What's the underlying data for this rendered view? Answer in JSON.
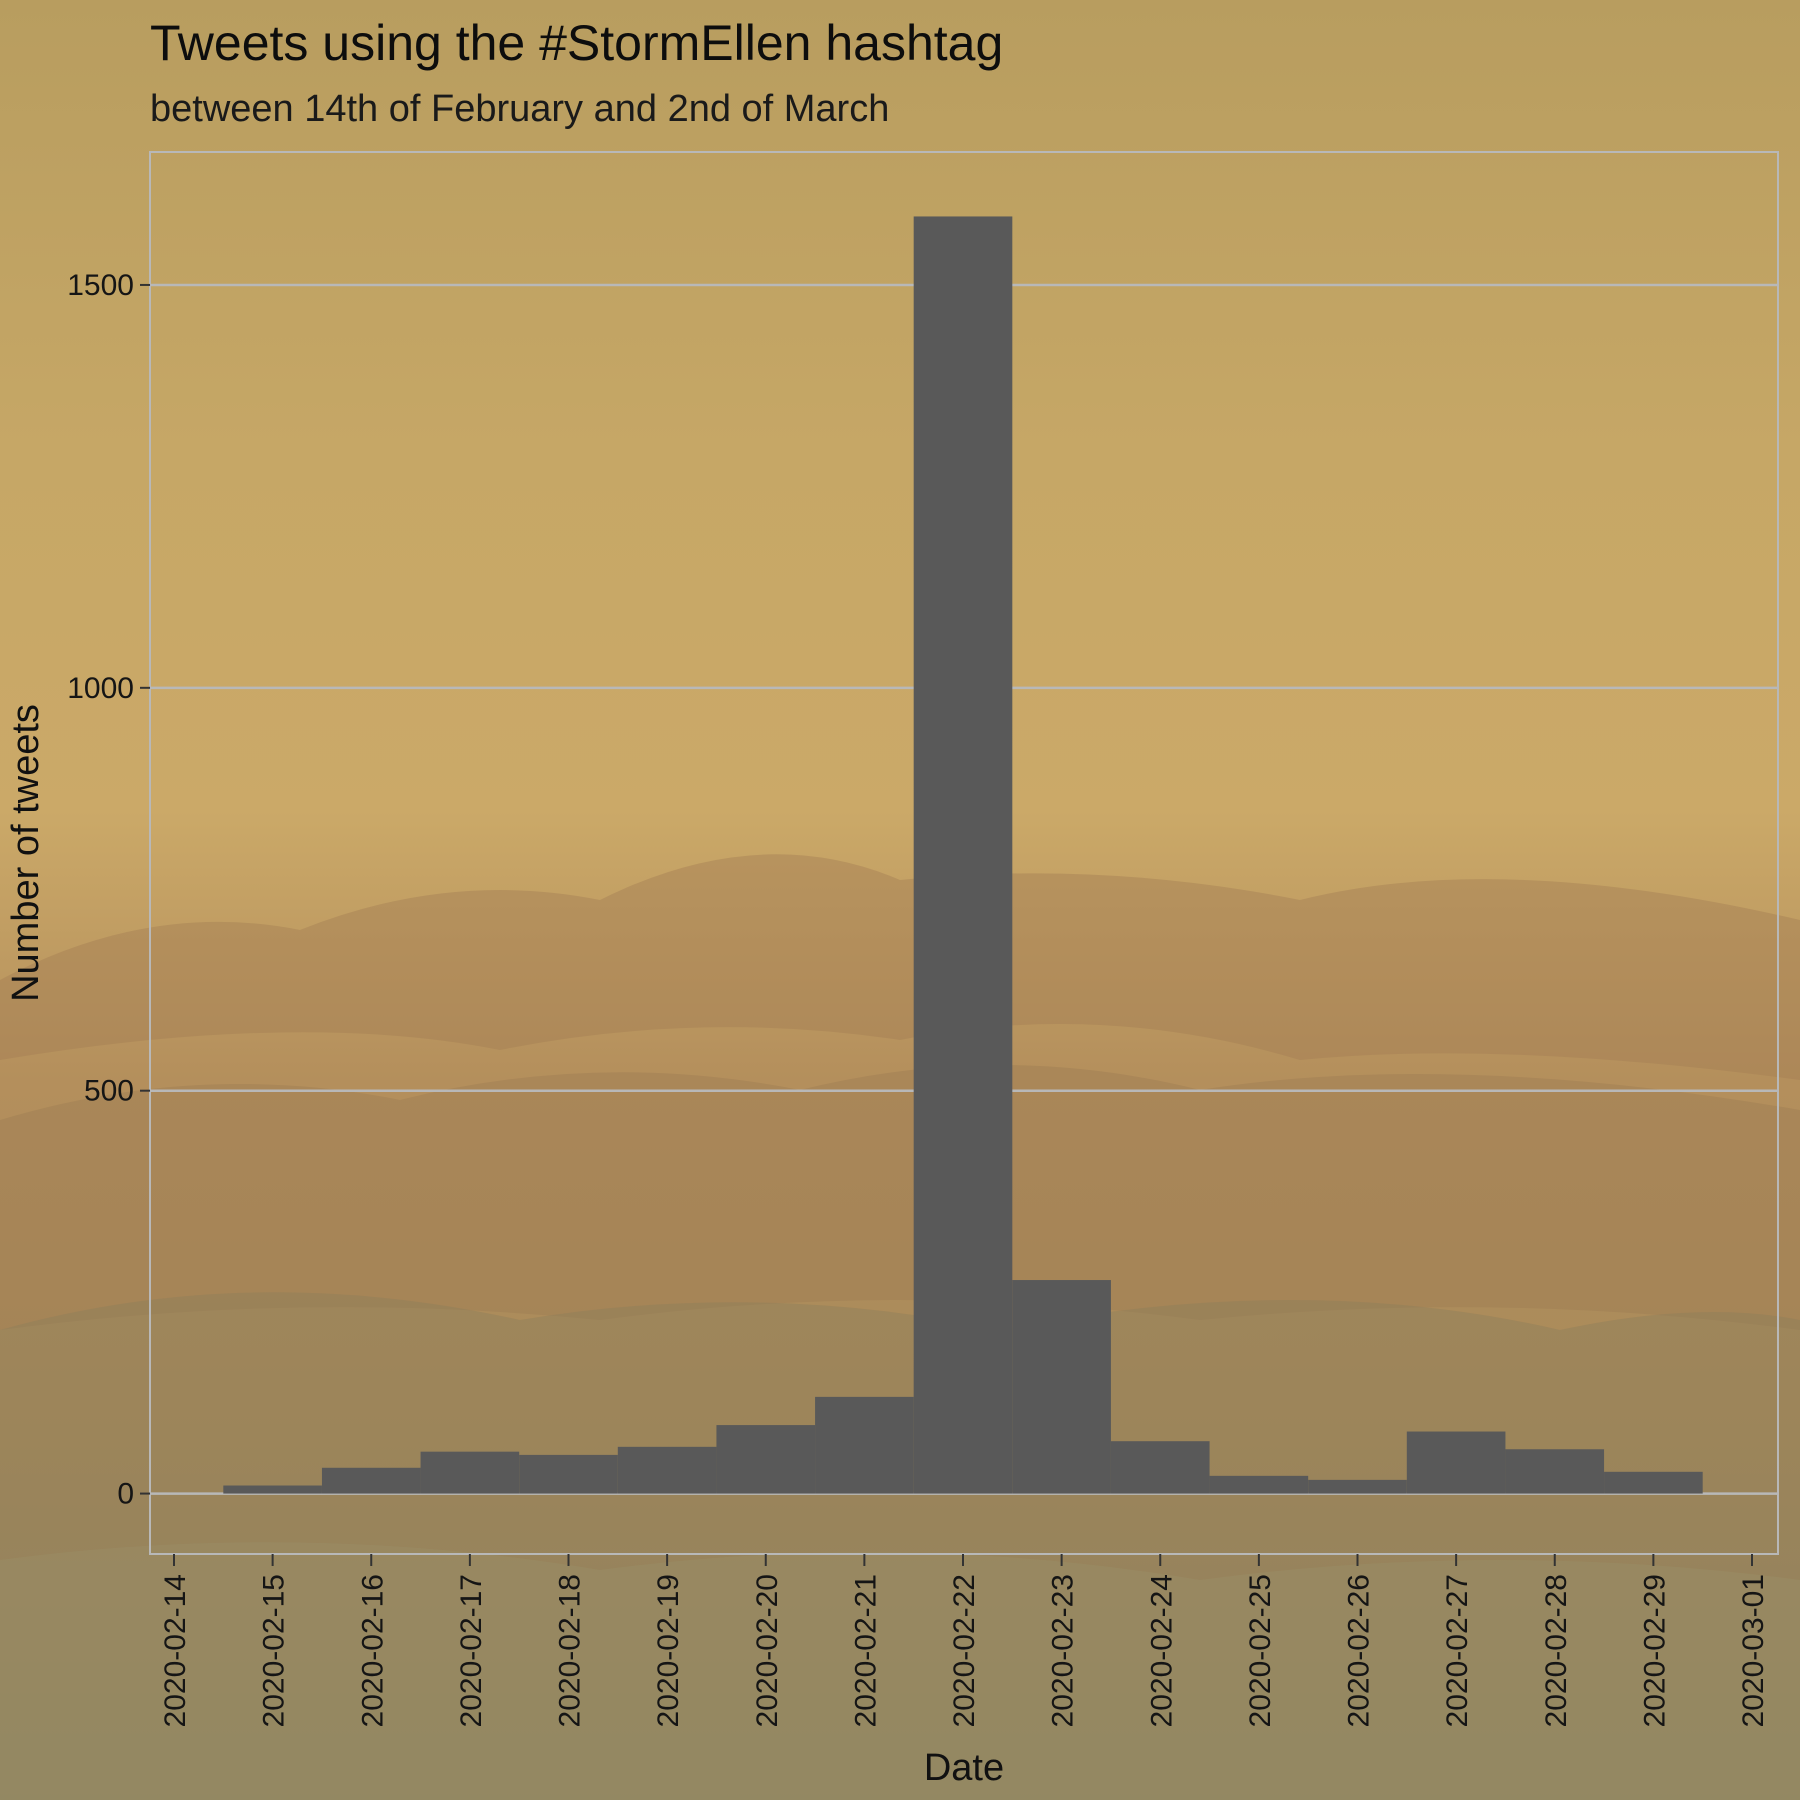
{
  "chart_data": {
    "type": "bar",
    "title": "Tweets using the #StormEllen hashtag",
    "subtitle": "between 14th of February and 2nd of March",
    "xlabel": "Date",
    "ylabel": "Number of tweets",
    "x_ticks": [
      "2020-02-14",
      "2020-02-15",
      "2020-02-16",
      "2020-02-17",
      "2020-02-18",
      "2020-02-19",
      "2020-02-20",
      "2020-02-21",
      "2020-02-22",
      "2020-02-23",
      "2020-02-24",
      "2020-02-25",
      "2020-02-26",
      "2020-02-27",
      "2020-02-28",
      "2020-02-29",
      "2020-03-01"
    ],
    "y_ticks": [
      0,
      500,
      1000,
      1500
    ],
    "ylim": [
      -75,
      1665
    ],
    "categories": [
      "2020-02-15",
      "2020-02-16",
      "2020-02-17",
      "2020-02-18",
      "2020-02-19",
      "2020-02-20",
      "2020-02-21",
      "2020-02-22",
      "2020-02-23",
      "2020-02-24",
      "2020-02-25",
      "2020-02-26",
      "2020-02-27",
      "2020-02-28",
      "2020-02-29"
    ],
    "values": [
      10,
      32,
      52,
      48,
      58,
      85,
      120,
      1585,
      265,
      65,
      22,
      17,
      77,
      55,
      27
    ],
    "bar_color": "#595959",
    "grid": true,
    "grid_color": "#b8b8b8",
    "legend": "none"
  }
}
